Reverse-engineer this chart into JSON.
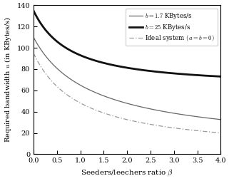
{
  "xlabel": "Seeders/leechers ratio $\\beta$",
  "ylabel": "Required bandwidth $u$ (in KBytes/s)",
  "xlim": [
    0,
    4
  ],
  "ylim": [
    0,
    140
  ],
  "xticks": [
    0,
    0.5,
    1,
    1.5,
    2,
    2.5,
    3,
    3.5,
    4
  ],
  "yticks": [
    0,
    20,
    40,
    60,
    80,
    100,
    120,
    140
  ],
  "legend_labels": [
    "$b = 1.7$ KBytes/s",
    "$b = 25$ KBytes/s",
    "Ideal system $(a = b = 0)$"
  ],
  "curve_thin_color": "#666666",
  "curve_thick_color": "#111111",
  "curve_ideal_color": "#999999",
  "background_color": "#ffffff",
  "thin_C": 110.0,
  "thin_k": 0.72,
  "thin_n": 1.0,
  "thick_C": 135.0,
  "thick_k": 0.26,
  "thick_n": 1.0,
  "ideal_C": 95.0,
  "ideal_k": 1.05,
  "ideal_n": 1.0
}
